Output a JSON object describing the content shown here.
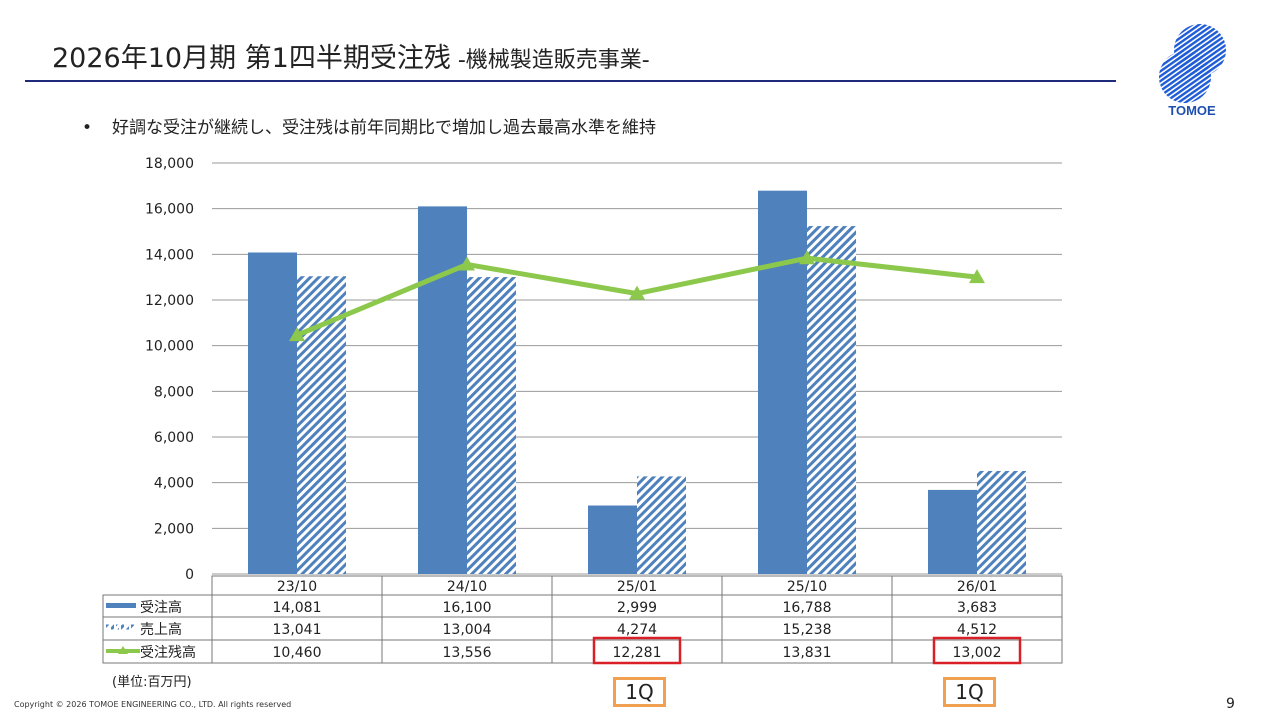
{
  "header": {
    "title": "2026年10月期 第1四半期受注残",
    "subtitle": " -機械製造販売事業-",
    "logo_text": "TOMOE"
  },
  "bullet": {
    "marker": "•",
    "text": "好調な受注が継続し、受注残は前年同期比で増加し過去最高水準を維持"
  },
  "colors": {
    "orders": "#4f81bd",
    "sales": "#4f81bd",
    "backlog": "#8cc84b",
    "highlight_box": "#d92027",
    "quarter_box": "#f0a050",
    "title_rule": "#1f2a7a"
  },
  "chart_data": {
    "type": "bar",
    "categories": [
      "23/10",
      "24/10",
      "25/01",
      "25/10",
      "26/01"
    ],
    "series": [
      {
        "name": "受注高",
        "type": "bar",
        "style": "solid",
        "values": [
          14081,
          16100,
          2999,
          16788,
          3683
        ],
        "labels": [
          "14,081",
          "16,100",
          "2,999",
          "16,788",
          "3,683"
        ]
      },
      {
        "name": "売上高",
        "type": "bar",
        "style": "hatched",
        "values": [
          13041,
          13004,
          4274,
          15238,
          4512
        ],
        "labels": [
          "13,041",
          "13,004",
          "4,274",
          "15,238",
          "4,512"
        ]
      },
      {
        "name": "受注残高",
        "type": "line",
        "marker": "triangle",
        "values": [
          10460,
          13556,
          12281,
          13831,
          13002
        ],
        "labels": [
          "10,460",
          "13,556",
          "12,281",
          "13,831",
          "13,002"
        ]
      }
    ],
    "ylim": [
      0,
      18000
    ],
    "yticks": [
      "0",
      "2,000",
      "4,000",
      "6,000",
      "8,000",
      "10,000",
      "12,000",
      "14,000",
      "16,000",
      "18,000"
    ],
    "grid": true,
    "legend": "data-table",
    "highlighted_cells": [
      "25/01",
      "26/01"
    ],
    "unit_note": "(単位:百万円)"
  },
  "annotations": {
    "q1_label": "1Q"
  },
  "footer": {
    "copyright": "Copyright © 2026 TOMOE ENGINEERING CO., LTD. All rights reserved",
    "page": "9"
  }
}
